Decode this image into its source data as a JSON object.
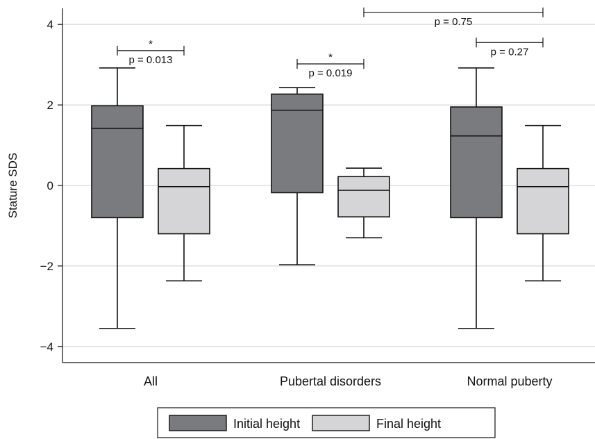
{
  "chart_data": {
    "type": "boxplot",
    "ylabel": "Stature SDS",
    "xlabel": "",
    "ylim": [
      -4.4,
      4.4
    ],
    "yticks": [
      -4,
      -2,
      0,
      2,
      4
    ],
    "ytick_labels": [
      "−4",
      "−2",
      "0",
      "2",
      "4"
    ],
    "grid": true,
    "categories": [
      "All",
      "Pubertal disorders",
      "Normal puberty"
    ],
    "series": [
      {
        "name": "Initial height",
        "color": "#7a7b7f",
        "boxes": [
          {
            "whisker_low": -3.55,
            "q1": -0.8,
            "median": 1.42,
            "q3": 1.98,
            "whisker_high": 2.92
          },
          {
            "whisker_low": -1.97,
            "q1": -0.18,
            "median": 1.87,
            "q3": 2.27,
            "whisker_high": 2.43
          },
          {
            "whisker_low": -3.55,
            "q1": -0.8,
            "median": 1.23,
            "q3": 1.95,
            "whisker_high": 2.92
          }
        ]
      },
      {
        "name": "Final height",
        "color": "#d5d5d7",
        "boxes": [
          {
            "whisker_low": -2.37,
            "q1": -1.2,
            "median": -0.03,
            "q3": 0.42,
            "whisker_high": 1.49
          },
          {
            "whisker_low": -1.3,
            "q1": -0.78,
            "median": -0.12,
            "q3": 0.22,
            "whisker_high": 0.43
          },
          {
            "whisker_low": -2.37,
            "q1": -1.2,
            "median": -0.03,
            "q3": 0.42,
            "whisker_high": 1.49
          }
        ]
      }
    ],
    "annotations": [
      {
        "label": "p = 0.013",
        "star": "*",
        "from_category": 0,
        "from_series": 0,
        "to_category": 0,
        "to_series": 1,
        "y": 3.35
      },
      {
        "label": "p = 0.019",
        "star": "*",
        "from_category": 1,
        "from_series": 0,
        "to_category": 1,
        "to_series": 1,
        "y": 3.02
      },
      {
        "label": "p = 0.27",
        "star": "",
        "from_category": 2,
        "from_series": 0,
        "to_category": 2,
        "to_series": 1,
        "y": 3.55
      },
      {
        "label": "p = 0.75",
        "star": "",
        "from_category": 1,
        "from_series": 1,
        "to_category": 2,
        "to_series": 1,
        "y": 4.3
      }
    ],
    "legend": {
      "position": "bottom",
      "entries": [
        "Initial height",
        "Final height"
      ]
    }
  }
}
